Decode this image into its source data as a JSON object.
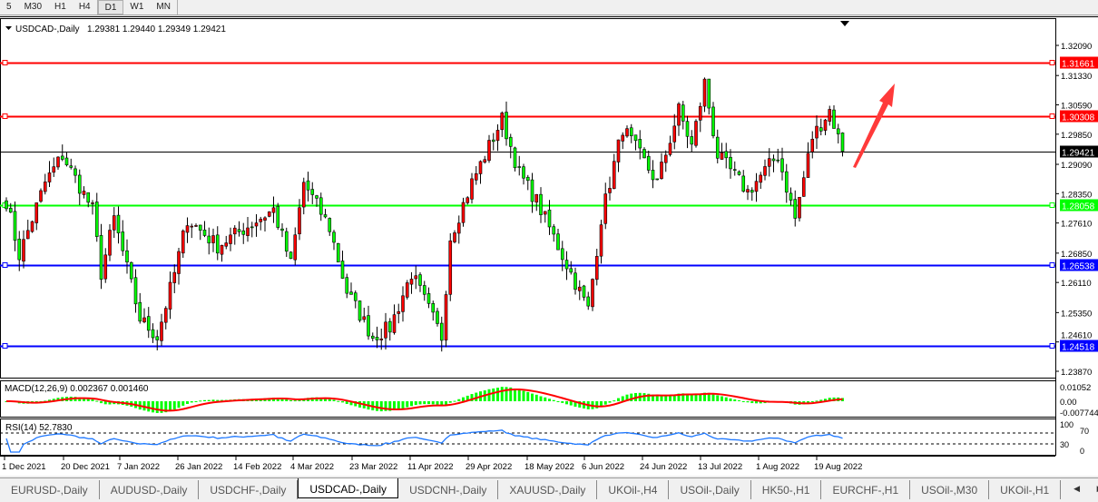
{
  "toolbar": {
    "timeframes": [
      "5",
      "M30",
      "H1",
      "H4",
      "D1",
      "W1",
      "MN"
    ],
    "active": "D1"
  },
  "header": {
    "symbol": "USDCAD-,Daily",
    "ohlc": "1.29381 1.29440 1.29349 1.29421"
  },
  "chart_data": {
    "type": "candlestick",
    "symbol": "USDCAD-",
    "timeframe": "Daily",
    "ylim": [
      1.2387,
      1.3209
    ],
    "colors": {
      "up": "#ff0000",
      "down": "#00ff00",
      "outline": "#000000"
    },
    "close_keypoints": [
      [
        0,
        1.2817
      ],
      [
        3,
        1.268
      ],
      [
        9,
        1.2863
      ],
      [
        13,
        1.2932
      ],
      [
        20,
        1.2795
      ],
      [
        22,
        1.2634
      ],
      [
        25,
        1.2772
      ],
      [
        31,
        1.252
      ],
      [
        35,
        1.2474
      ],
      [
        39,
        1.2634
      ],
      [
        42,
        1.2772
      ],
      [
        49,
        1.2703
      ],
      [
        62,
        1.2795
      ],
      [
        66,
        1.2657
      ],
      [
        69,
        1.2863
      ],
      [
        75,
        1.2749
      ],
      [
        79,
        1.2588
      ],
      [
        85,
        1.2474
      ],
      [
        89,
        1.2497
      ],
      [
        94,
        1.2634
      ],
      [
        101,
        1.2474
      ],
      [
        103,
        1.2726
      ],
      [
        108,
        1.2863
      ],
      [
        115,
        1.3023
      ],
      [
        119,
        1.2886
      ],
      [
        123,
        1.2817
      ],
      [
        129,
        1.268
      ],
      [
        135,
        1.2543
      ],
      [
        138,
        1.2772
      ],
      [
        141,
        1.2909
      ],
      [
        143,
        1.3001
      ],
      [
        151,
        1.2863
      ],
      [
        156,
        1.3046
      ],
      [
        159,
        1.2955
      ],
      [
        162,
        1.3115
      ],
      [
        165,
        1.2932
      ],
      [
        172,
        1.284
      ],
      [
        179,
        1.2932
      ],
      [
        183,
        1.2772
      ],
      [
        187,
        1.2978
      ],
      [
        191,
        1.3046
      ],
      [
        194,
        1.29421
      ]
    ],
    "price_ticks": [
      "1.32090",
      "1.31330",
      "1.30590",
      "1.29850",
      "1.29090",
      "1.28350",
      "1.27610",
      "1.26850",
      "1.26110",
      "1.25350",
      "1.24610",
      "1.23870"
    ],
    "date_ticks": [
      "1 Dec 2021",
      "20 Dec 2021",
      "7 Jan 2022",
      "26 Jan 2022",
      "14 Feb 2022",
      "4 Mar 2022",
      "23 Mar 2022",
      "11 Apr 2022",
      "29 Apr 2022",
      "18 May 2022",
      "6 Jun 2022",
      "24 Jun 2022",
      "13 Jul 2022",
      "1 Aug 2022",
      "19 Aug 2022"
    ],
    "levels": [
      {
        "price": 1.31661,
        "label": "1.31661",
        "color": "#ff0000"
      },
      {
        "price": 1.30308,
        "label": "1.30308",
        "color": "#ff0000"
      },
      {
        "price": 1.29421,
        "label": "1.29421",
        "color": "#000000"
      },
      {
        "price": 1.28058,
        "label": "1.28058",
        "color": "#00ff00"
      },
      {
        "price": 1.26538,
        "label": "1.26538",
        "color": "#0000ff"
      },
      {
        "price": 1.24518,
        "label": "1.24518",
        "color": "#0000ff"
      }
    ],
    "annotation": {
      "type": "arrow-up",
      "color": "#ff3030"
    }
  },
  "macd": {
    "label": "MACD(12,26,9) 0.002367 0.001460",
    "ticks": [
      "0.01052",
      "0.00",
      "-0.007744"
    ],
    "hist_color": "#00ff00",
    "signal_color": "#ff0000"
  },
  "rsi": {
    "label": "RSI(14) 52.7830",
    "ticks": [
      "100",
      "70",
      "30",
      "0"
    ],
    "line_color": "#1e78ff"
  },
  "tabs": [
    "EURUSD-,Daily",
    "AUDUSD-,Daily",
    "USDCHF-,Daily",
    "USDCAD-,Daily",
    "USDCNH-,Daily",
    "XAUUSD-,Daily",
    "UKOil-,H4",
    "USOil-,Daily",
    "HK50-,H1",
    "EURCHF-,H1",
    "USOil-,M30",
    "UKOil-,H1"
  ],
  "active_tab": "USDCAD-,Daily",
  "tab_nav": "◀ ▶"
}
